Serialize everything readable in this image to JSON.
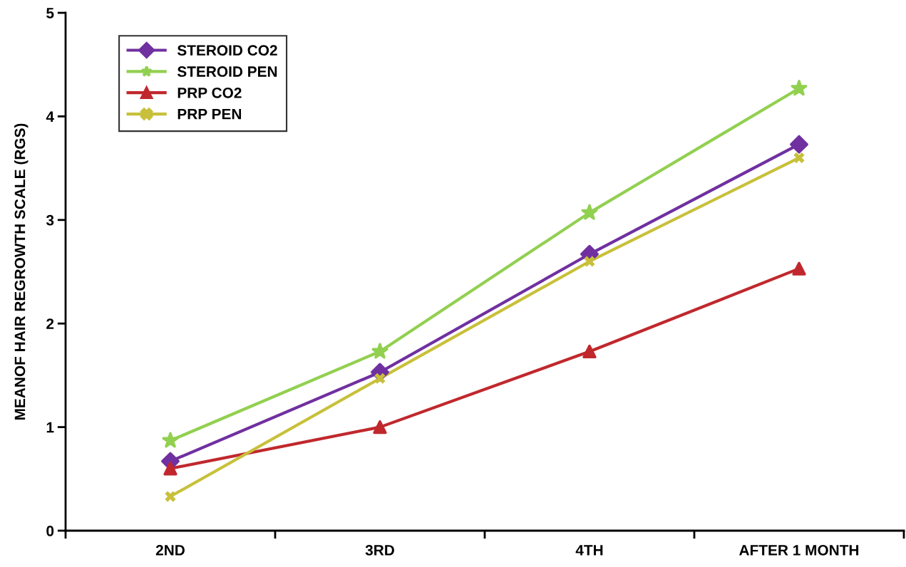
{
  "chart_data": {
    "type": "line",
    "ylabel": "MEANOF HAIR REGROWTH SCALE (RGS)",
    "categories": [
      "2ND",
      "3RD",
      "4TH",
      "AFTER 1 MONTH"
    ],
    "series": [
      {
        "name": "STEROID CO2",
        "color": "#7030a0",
        "marker": "diamond",
        "values": [
          0.67,
          1.53,
          2.67,
          3.73
        ]
      },
      {
        "name": "STEROID PEN",
        "color": "#92d050",
        "marker": "star",
        "values": [
          0.87,
          1.73,
          3.07,
          4.27
        ]
      },
      {
        "name": "PRP CO2",
        "color": "#c0282d",
        "marker": "triangle",
        "values": [
          0.6,
          1.0,
          1.73,
          2.53
        ]
      },
      {
        "name": "PRP PEN",
        "color": "#c8c03a",
        "marker": "cross",
        "values": [
          0.33,
          1.47,
          2.6,
          3.6
        ]
      }
    ],
    "ylim": [
      0,
      5
    ],
    "yticks": [
      0,
      1,
      2,
      3,
      4,
      5
    ],
    "grid": false,
    "legend": "top left",
    "line_style": "solid"
  }
}
